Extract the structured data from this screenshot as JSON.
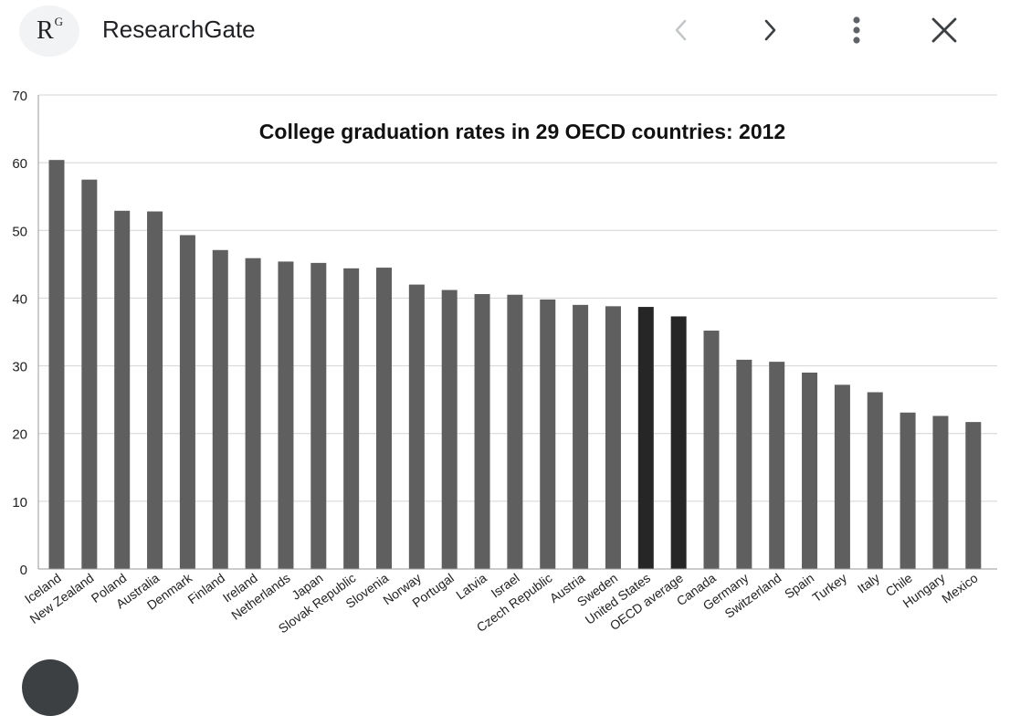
{
  "topbar": {
    "logo_letter": "R",
    "logo_superscript": "G",
    "site_name": "ResearchGate",
    "icons": {
      "back": "chevron-left-icon",
      "forward": "chevron-right-icon",
      "menu": "more-vert-icon",
      "close": "close-icon"
    }
  },
  "colors": {
    "bar": "#5f5f5f",
    "bar_highlight": "#262626",
    "grid": "#d4d4d4",
    "axis_text": "#222222"
  },
  "chart_data": {
    "type": "bar",
    "title": "College graduation rates in 29 OECD countries: 2012",
    "xlabel": "",
    "ylabel": "",
    "ylim": [
      0,
      70
    ],
    "yticks": [
      "0",
      "10",
      "20",
      "30",
      "40",
      "50",
      "60",
      "70"
    ],
    "grid": true,
    "categories": [
      "Iceland",
      "New Zealand",
      "Poland",
      "Australia",
      "Denmark",
      "Finland",
      "Ireland",
      "Netherlands",
      "Japan",
      "Slovak Republic",
      "Slovenia",
      "Norway",
      "Portugal",
      "Latvia",
      "Israel",
      "Czech Republic",
      "Austria",
      "Sweden",
      "United States",
      "OECD average",
      "Canada",
      "Germany",
      "Switzerland",
      "Spain",
      "Turkey",
      "Italy",
      "Chile",
      "Hungary",
      "Mexico"
    ],
    "values": [
      60.4,
      57.5,
      52.9,
      52.8,
      49.3,
      47.1,
      45.9,
      45.4,
      45.2,
      44.4,
      44.5,
      42.0,
      41.2,
      40.6,
      40.5,
      39.8,
      39.0,
      38.8,
      38.7,
      37.3,
      35.2,
      30.9,
      30.6,
      29.0,
      27.2,
      26.1,
      23.1,
      22.6,
      21.7
    ],
    "highlighted": [
      "United States",
      "OECD average"
    ]
  }
}
